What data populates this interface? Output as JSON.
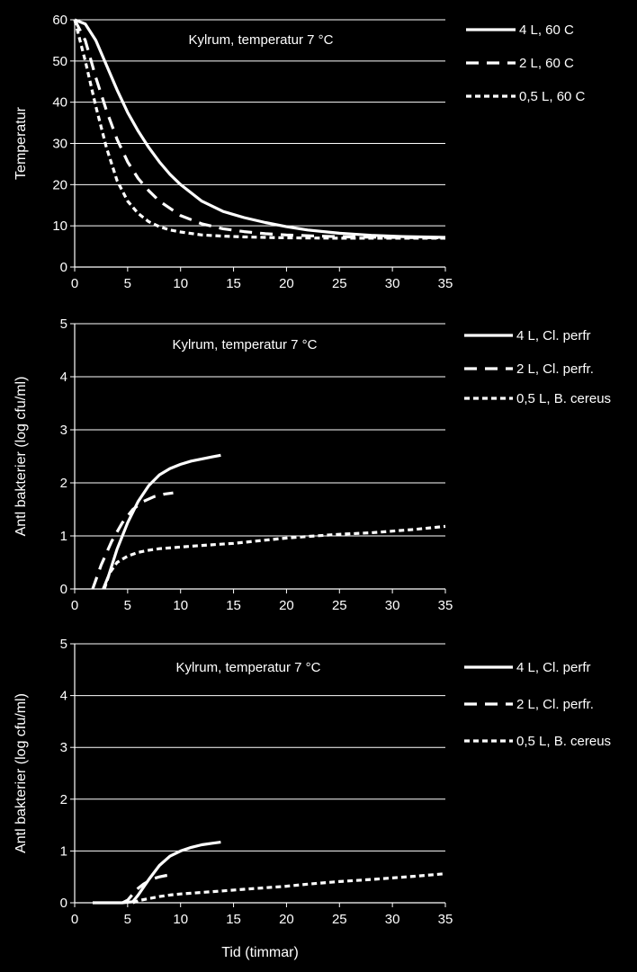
{
  "chart_data": [
    {
      "type": "line",
      "title": "",
      "annotation": "Kylrum, temperatur 7 °C",
      "xlabel": "",
      "ylabel": "Temperatur",
      "xlim": [
        0,
        35
      ],
      "ylim": [
        0,
        60
      ],
      "xticks": [
        "0",
        "5",
        "10",
        "15",
        "20",
        "25",
        "30",
        "35"
      ],
      "yticks": [
        "0",
        "10",
        "20",
        "30",
        "40",
        "50",
        "60"
      ],
      "grid": "horizontal",
      "legend_position": "right",
      "series": [
        {
          "name": "4 L, 60 C",
          "style": "solid",
          "x": [
            0,
            1,
            2,
            3,
            4,
            5,
            6,
            7,
            8,
            9,
            10,
            12,
            14,
            16,
            18,
            20,
            22,
            25,
            28,
            31,
            35
          ],
          "y": [
            60,
            59,
            55,
            49,
            43,
            37.5,
            33,
            29,
            25.5,
            22.5,
            20,
            16,
            13.5,
            12,
            10.8,
            9.8,
            9,
            8.2,
            7.7,
            7.4,
            7.2
          ]
        },
        {
          "name": "2 L, 60 C",
          "style": "dash",
          "x": [
            0,
            1,
            2,
            3,
            4,
            5,
            6,
            7,
            8,
            10,
            12,
            14,
            16,
            18,
            20,
            23,
            26,
            30,
            35
          ],
          "y": [
            60,
            55,
            46,
            38,
            31,
            25.5,
            21.5,
            18.5,
            16,
            12.5,
            10.5,
            9.3,
            8.6,
            8.1,
            7.8,
            7.5,
            7.3,
            7.2,
            7.1
          ]
        },
        {
          "name": "0,5 L, 60 C",
          "style": "dot",
          "x": [
            0,
            1,
            2,
            3,
            4,
            5,
            6,
            7,
            8,
            9,
            10,
            12,
            14,
            16,
            18,
            20,
            25,
            30,
            35
          ],
          "y": [
            60,
            50,
            39,
            29,
            21,
            16,
            13,
            11,
            9.8,
            9,
            8.5,
            7.8,
            7.5,
            7.3,
            7.2,
            7.1,
            7,
            7,
            7
          ]
        }
      ]
    },
    {
      "type": "line",
      "title": "",
      "annotation": "Kylrum, temperatur 7 °C",
      "xlabel": "",
      "ylabel": "Antl bakterier (log cfu/ml)",
      "xlim": [
        0,
        35
      ],
      "ylim": [
        0,
        5
      ],
      "xticks": [
        "0",
        "5",
        "10",
        "15",
        "20",
        "25",
        "30",
        "35"
      ],
      "yticks": [
        "0",
        "1",
        "2",
        "3",
        "4",
        "5"
      ],
      "grid": "horizontal",
      "legend_position": "right",
      "series": [
        {
          "name": "4 L, Cl. perfr",
          "style": "solid",
          "x": [
            2.7,
            3.2,
            4,
            5,
            6,
            7,
            8,
            9,
            10,
            11,
            12,
            13,
            13.8
          ],
          "y": [
            0,
            0.25,
            0.75,
            1.25,
            1.65,
            1.95,
            2.15,
            2.27,
            2.35,
            2.41,
            2.45,
            2.49,
            2.52
          ]
        },
        {
          "name": "2 L, Cl. perfr.",
          "style": "dash",
          "x": [
            1.7,
            2.5,
            3.5,
            4.5,
            5.5,
            6.5,
            7.5,
            8.5,
            9.3
          ],
          "y": [
            0,
            0.45,
            0.9,
            1.25,
            1.5,
            1.65,
            1.74,
            1.79,
            1.81
          ]
        },
        {
          "name": "0,5 L, B. cereus",
          "style": "dot",
          "x": [
            2.8,
            3.3,
            4,
            5,
            6,
            7,
            8,
            10,
            12,
            15,
            18,
            20,
            22,
            25,
            28,
            30,
            32,
            35
          ],
          "y": [
            0,
            0.3,
            0.5,
            0.62,
            0.69,
            0.73,
            0.76,
            0.79,
            0.82,
            0.86,
            0.92,
            0.96,
            0.99,
            1.03,
            1.06,
            1.09,
            1.12,
            1.18
          ]
        }
      ]
    },
    {
      "type": "line",
      "title": "",
      "annotation": "Kylrum, temperatur 7 °C",
      "xlabel": "Tid (timmar)",
      "ylabel": "Antl bakterier (log cfu/ml)",
      "xlim": [
        0,
        35
      ],
      "ylim": [
        0,
        5
      ],
      "xticks": [
        "0",
        "5",
        "10",
        "15",
        "20",
        "25",
        "30",
        "35"
      ],
      "yticks": [
        "0",
        "1",
        "2",
        "3",
        "4",
        "5"
      ],
      "grid": "horizontal",
      "legend_position": "right",
      "series": [
        {
          "name": "4 L, Cl. perfr",
          "style": "solid",
          "x": [
            1.7,
            3,
            4.5,
            5.5,
            6,
            7,
            8,
            9,
            10,
            11,
            12,
            13,
            13.8
          ],
          "y": [
            0,
            0,
            0,
            0.02,
            0.15,
            0.45,
            0.72,
            0.9,
            1.0,
            1.07,
            1.12,
            1.15,
            1.17
          ]
        },
        {
          "name": "2 L, Cl. perfr.",
          "style": "dash",
          "x": [
            4.5,
            5,
            5.5,
            6,
            6.5,
            7,
            7.5,
            8,
            8.5,
            9
          ],
          "y": [
            0,
            0.05,
            0.17,
            0.28,
            0.36,
            0.42,
            0.47,
            0.5,
            0.52,
            0.54
          ]
        },
        {
          "name": "0,5 L, B. cereus",
          "style": "dot",
          "x": [
            5.5,
            6,
            7,
            8,
            9,
            10,
            12,
            14,
            16,
            18,
            20,
            22,
            25,
            28,
            30,
            32,
            35
          ],
          "y": [
            0,
            0.04,
            0.08,
            0.12,
            0.15,
            0.17,
            0.2,
            0.23,
            0.26,
            0.29,
            0.32,
            0.36,
            0.41,
            0.45,
            0.48,
            0.51,
            0.56
          ]
        }
      ]
    }
  ]
}
